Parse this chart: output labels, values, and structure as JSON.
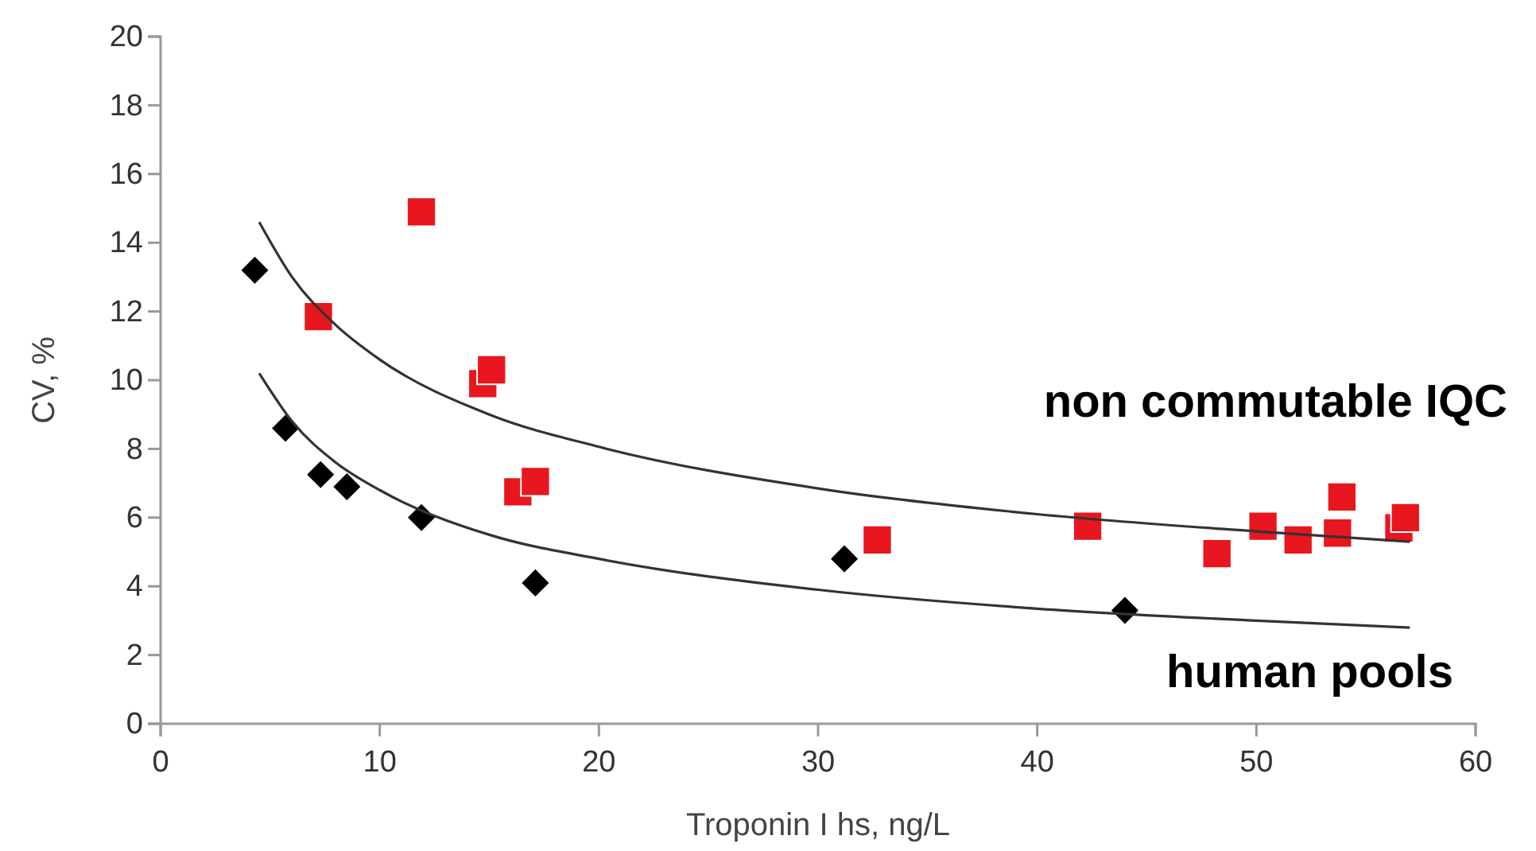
{
  "chart_data": {
    "type": "scatter",
    "xlabel": "Troponin I hs, ng/L",
    "ylabel": "CV, %",
    "xlim": [
      0,
      60
    ],
    "xticks": [
      0,
      10,
      20,
      30,
      40,
      50,
      60
    ],
    "ylim": [
      0,
      20
    ],
    "yticks": [
      0,
      2,
      4,
      6,
      8,
      10,
      12,
      14,
      16,
      18,
      20
    ],
    "grid": false,
    "series": [
      {
        "name": "non commutable IQC",
        "color": "#e8161e",
        "marker": "square",
        "x": [
          11.9,
          7.2,
          14.7,
          15.1,
          16.3,
          17.1,
          32.7,
          42.3,
          48.2,
          50.3,
          51.9,
          53.7,
          53.9,
          56.5,
          56.8
        ],
        "values": [
          14.9,
          11.85,
          9.9,
          10.3,
          6.75,
          7.05,
          5.35,
          5.75,
          4.95,
          5.75,
          5.35,
          5.55,
          6.6,
          5.7,
          6.0
        ]
      },
      {
        "name": "human pools",
        "color": "#000000",
        "marker": "diamond",
        "x": [
          4.3,
          5.7,
          7.3,
          8.5,
          11.9,
          17.1,
          31.2,
          44.0
        ],
        "values": [
          13.2,
          8.6,
          7.25,
          6.9,
          6.0,
          4.1,
          4.8,
          3.3
        ]
      },
      {
        "type": "line",
        "color": "#333333",
        "line_style": "solid",
        "x": [
          4.5,
          6,
          8,
          10,
          15,
          20,
          30,
          40,
          50,
          57
        ],
        "values": [
          14.6,
          13.0,
          11.6,
          10.6,
          9.0,
          8.06,
          6.85,
          6.1,
          5.6,
          5.3
        ]
      },
      {
        "type": "line",
        "color": "#333333",
        "line_style": "solid",
        "x": [
          4.5,
          6,
          8,
          10,
          15,
          20,
          30,
          40,
          50,
          57
        ],
        "values": [
          10.2,
          8.8,
          7.6,
          6.8,
          5.5,
          4.8,
          3.9,
          3.35,
          3.0,
          2.8
        ]
      }
    ]
  }
}
